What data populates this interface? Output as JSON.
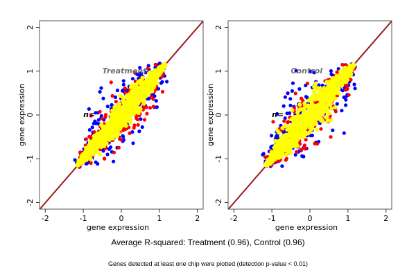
{
  "chart_data": [
    {
      "type": "scatter",
      "title": "Treatment",
      "annotation": "n=",
      "xlabel": "gene expression",
      "ylabel": "gene expression",
      "xlim": [
        -2.15,
        2.15
      ],
      "ylim": [
        -2.15,
        2.15
      ],
      "xticks": [
        -2,
        -1,
        0,
        1,
        2
      ],
      "yticks": [
        -2,
        -1,
        0,
        1,
        2
      ],
      "grid": false,
      "reference_lines": [
        {
          "name": "yellow-diagonal",
          "color": "#ffff00",
          "slope": 1,
          "intercept": 0.02
        },
        {
          "name": "blue-diagonal",
          "color": "#0000ff",
          "slope": 1,
          "intercept": 0
        },
        {
          "name": "red-diagonal",
          "color": "#ff0000",
          "slope": 1,
          "intercept": -0.02
        }
      ],
      "series": [
        {
          "name": "blue points",
          "color": "#0000ff",
          "spread": 0.32,
          "x_range": [
            -1.15,
            1.15
          ]
        },
        {
          "name": "red points",
          "color": "#ff0000",
          "spread": 0.26,
          "x_range": [
            -1.15,
            1.15
          ]
        },
        {
          "name": "yellow points",
          "color": "#ffff00",
          "spread": 0.12,
          "x_range": [
            -1.15,
            1.15
          ]
        }
      ]
    },
    {
      "type": "scatter",
      "title": "Control",
      "annotation": "n=",
      "xlabel": "gene expression",
      "ylabel": "gene expression",
      "xlim": [
        -2.15,
        2.15
      ],
      "ylim": [
        -2.15,
        2.15
      ],
      "xticks": [
        -2,
        -1,
        0,
        1,
        2
      ],
      "yticks": [
        -2,
        -1,
        0,
        1,
        2
      ],
      "grid": false,
      "reference_lines": [
        {
          "name": "yellow-diagonal",
          "color": "#ffff00",
          "slope": 1,
          "intercept": 0.02
        },
        {
          "name": "blue-diagonal",
          "color": "#0000ff",
          "slope": 1,
          "intercept": 0
        },
        {
          "name": "red-diagonal",
          "color": "#ff0000",
          "slope": 1,
          "intercept": -0.02
        }
      ],
      "series": [
        {
          "name": "blue points",
          "color": "#0000ff",
          "spread": 0.36,
          "x_range": [
            -1.15,
            1.15
          ]
        },
        {
          "name": "red points",
          "color": "#ff0000",
          "spread": 0.3,
          "x_range": [
            -1.15,
            1.15
          ]
        },
        {
          "name": "yellow points",
          "color": "#ffff00",
          "spread": 0.14,
          "x_range": [
            -1.15,
            1.15
          ]
        }
      ]
    }
  ],
  "caption": {
    "main": "Average R-squared: Treatment (0.96), Control (0.96)",
    "sub": "Genes detected at least one chip were plotted (detection p-value < 0.01)"
  }
}
